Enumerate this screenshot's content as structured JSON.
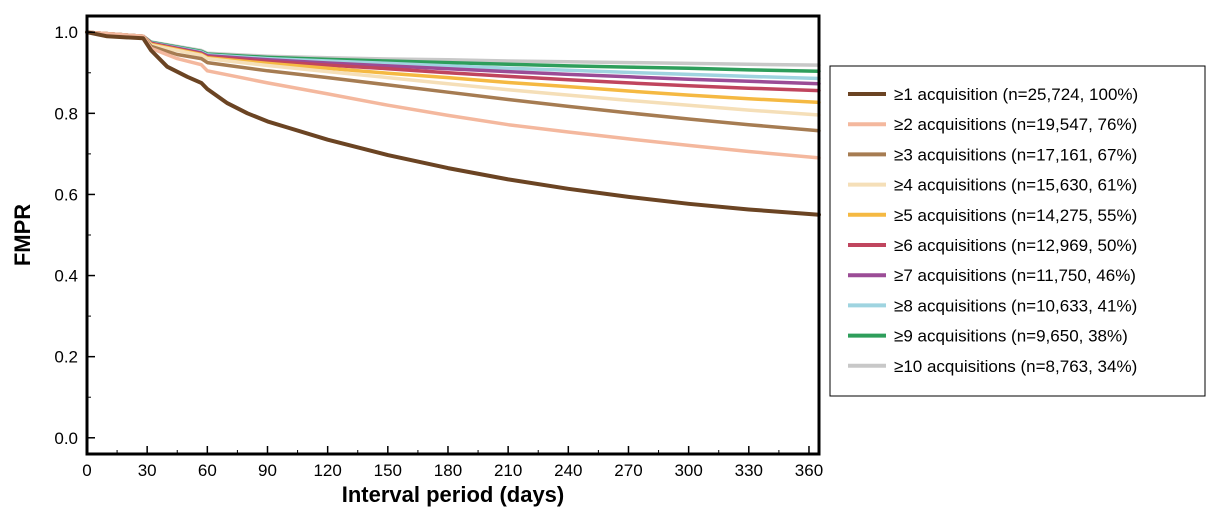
{
  "chart_data": {
    "type": "line",
    "title": "",
    "xlabel": "Interval period (days)",
    "ylabel": "FMPR",
    "xlim": [
      0,
      365
    ],
    "ylim": [
      -0.04,
      1.04
    ],
    "xticks": [
      0,
      30,
      60,
      90,
      120,
      150,
      180,
      210,
      240,
      270,
      300,
      330,
      360
    ],
    "yticks": [
      0.0,
      0.2,
      0.4,
      0.6,
      0.8,
      1.0
    ],
    "ytick_labels": [
      "0.0",
      "0.2",
      "0.4",
      "0.6",
      "0.8",
      "1.0"
    ],
    "grid": false,
    "legend_position": "right",
    "series": [
      {
        "name": "≥1 acquisition (n=25,724, 100%)",
        "color": "#6b4423",
        "x": [
          0,
          10,
          28,
          32,
          40,
          50,
          57,
          60,
          70,
          80,
          90,
          100,
          120,
          150,
          180,
          210,
          240,
          270,
          300,
          330,
          365
        ],
        "y": [
          1.0,
          0.99,
          0.985,
          0.955,
          0.915,
          0.89,
          0.875,
          0.86,
          0.825,
          0.8,
          0.78,
          0.765,
          0.735,
          0.697,
          0.665,
          0.637,
          0.614,
          0.594,
          0.577,
          0.563,
          0.55
        ]
      },
      {
        "name": "≥2 acquisitions (n=19,547, 76%)",
        "color": "#f4b89e",
        "x": [
          0,
          28,
          32,
          45,
          57,
          60,
          75,
          90,
          120,
          150,
          180,
          210,
          240,
          270,
          300,
          330,
          365
        ],
        "y": [
          1.0,
          0.99,
          0.96,
          0.935,
          0.92,
          0.905,
          0.89,
          0.875,
          0.848,
          0.82,
          0.795,
          0.772,
          0.754,
          0.737,
          0.721,
          0.706,
          0.69
        ]
      },
      {
        "name": "≥3 acquisitions (n=17,161, 67%)",
        "color": "#a67c52",
        "x": [
          0,
          28,
          32,
          45,
          57,
          60,
          90,
          120,
          150,
          180,
          210,
          240,
          270,
          300,
          330,
          365
        ],
        "y": [
          1.0,
          0.99,
          0.965,
          0.945,
          0.935,
          0.925,
          0.905,
          0.888,
          0.87,
          0.852,
          0.834,
          0.817,
          0.801,
          0.786,
          0.772,
          0.757
        ]
      },
      {
        "name": "≥4 acquisitions (n=15,630, 61%)",
        "color": "#f5dfb8",
        "x": [
          0,
          28,
          32,
          57,
          60,
          90,
          120,
          150,
          180,
          210,
          240,
          270,
          300,
          330,
          365
        ],
        "y": [
          1.0,
          0.99,
          0.968,
          0.943,
          0.935,
          0.918,
          0.903,
          0.888,
          0.873,
          0.858,
          0.845,
          0.832,
          0.82,
          0.808,
          0.796
        ]
      },
      {
        "name": "≥5 acquisitions (n=14,275, 55%)",
        "color": "#f5b942",
        "x": [
          0,
          28,
          32,
          57,
          60,
          90,
          120,
          150,
          180,
          210,
          240,
          270,
          300,
          330,
          365
        ],
        "y": [
          1.0,
          0.99,
          0.97,
          0.945,
          0.937,
          0.923,
          0.911,
          0.899,
          0.888,
          0.876,
          0.866,
          0.855,
          0.845,
          0.836,
          0.827
        ]
      },
      {
        "name": "≥6 acquisitions (n=12,969, 50%)",
        "color": "#c0455e",
        "x": [
          0,
          28,
          32,
          57,
          60,
          90,
          120,
          150,
          180,
          210,
          240,
          270,
          300,
          330,
          365
        ],
        "y": [
          1.0,
          0.99,
          0.972,
          0.947,
          0.94,
          0.928,
          0.919,
          0.91,
          0.9,
          0.891,
          0.883,
          0.875,
          0.868,
          0.862,
          0.856
        ]
      },
      {
        "name": "≥7 acquisitions (n=11,750, 46%)",
        "color": "#9b4c96",
        "x": [
          0,
          28,
          32,
          57,
          60,
          90,
          120,
          150,
          180,
          210,
          240,
          270,
          300,
          330,
          365
        ],
        "y": [
          1.0,
          0.99,
          0.973,
          0.949,
          0.942,
          0.932,
          0.924,
          0.917,
          0.91,
          0.903,
          0.896,
          0.89,
          0.884,
          0.879,
          0.873
        ]
      },
      {
        "name": "≥8 acquisitions (n=10,633, 41%)",
        "color": "#9fd4e0",
        "x": [
          0,
          28,
          32,
          57,
          60,
          90,
          120,
          150,
          180,
          210,
          240,
          270,
          300,
          330,
          365
        ],
        "y": [
          1.0,
          0.99,
          0.974,
          0.951,
          0.944,
          0.935,
          0.929,
          0.923,
          0.917,
          0.911,
          0.906,
          0.901,
          0.896,
          0.891,
          0.886
        ]
      },
      {
        "name": "≥9 acquisitions (n=9,650, 38%)",
        "color": "#2e9e5b",
        "x": [
          0,
          28,
          32,
          57,
          60,
          90,
          120,
          150,
          180,
          210,
          240,
          270,
          300,
          330,
          365
        ],
        "y": [
          1.0,
          0.99,
          0.975,
          0.953,
          0.946,
          0.938,
          0.933,
          0.929,
          0.925,
          0.921,
          0.917,
          0.914,
          0.911,
          0.907,
          0.904
        ]
      },
      {
        "name": "≥10 acquisitions (n=8,763, 34%)",
        "color": "#c8c8c8",
        "x": [
          0,
          28,
          32,
          57,
          60,
          90,
          120,
          150,
          180,
          210,
          240,
          270,
          300,
          330,
          365
        ],
        "y": [
          1.0,
          0.99,
          0.976,
          0.955,
          0.948,
          0.941,
          0.937,
          0.934,
          0.932,
          0.929,
          0.927,
          0.925,
          0.923,
          0.921,
          0.919
        ]
      }
    ]
  }
}
